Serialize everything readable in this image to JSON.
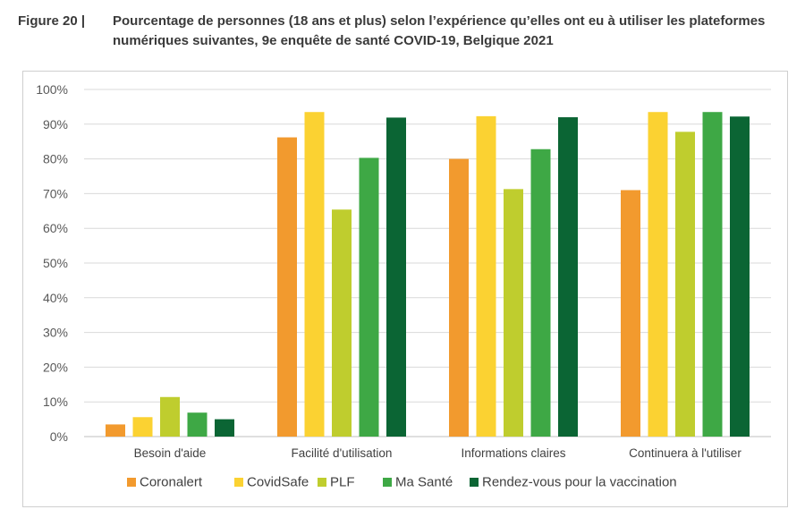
{
  "figure": {
    "number": "Figure 20 |",
    "title": "Pourcentage de personnes (18 ans et plus) selon l’expérience qu’elles ont eu à utiliser les plateformes numériques suivantes, 9e enquête de santé COVID-19, Belgique 2021"
  },
  "chart_data": {
    "type": "bar",
    "title": "Pourcentage de personnes (18 ans et plus) selon l’expérience qu’elles ont eu à utiliser les plateformes numériques suivantes, 9e enquête de santé COVID-19, Belgique 2021",
    "categories": [
      "Besoin d'aide",
      "Facilité d'utilisation",
      "Informations claires",
      "Continuera à l'utiliser"
    ],
    "series": [
      {
        "name": "Coronalert",
        "color": "#f29a2e",
        "values": [
          3.5,
          86.2,
          80.0,
          71.0
        ]
      },
      {
        "name": "CovidSafe",
        "color": "#fbd232",
        "values": [
          5.6,
          93.5,
          92.3,
          93.5
        ]
      },
      {
        "name": "PLF",
        "color": "#bfcd2e",
        "values": [
          11.4,
          65.4,
          71.3,
          87.8
        ]
      },
      {
        "name": "Ma Santé",
        "color": "#3ea845",
        "values": [
          6.9,
          80.3,
          82.8,
          93.5
        ]
      },
      {
        "name": "Rendez-vous pour la vaccination",
        "color": "#0b6534",
        "values": [
          5.0,
          91.9,
          92.0,
          92.2
        ]
      }
    ],
    "xlabel": "",
    "ylabel": "",
    "ylim": [
      0,
      100
    ],
    "yticks": [
      "0%",
      "10%",
      "20%",
      "30%",
      "40%",
      "50%",
      "60%",
      "70%",
      "80%",
      "90%",
      "100%"
    ],
    "grid": true,
    "legend": "bottom"
  }
}
